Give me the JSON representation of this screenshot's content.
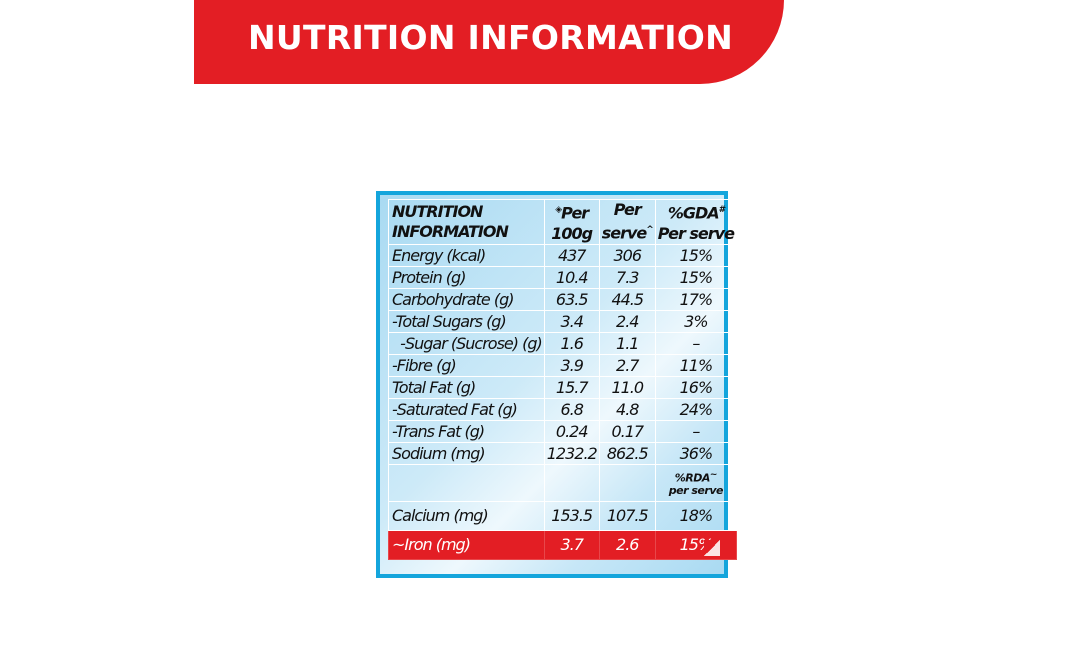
{
  "banner": {
    "title": "NUTRITION INFORMATION"
  },
  "table": {
    "header": {
      "label_line1": "NUTRITION",
      "label_line2": "INFORMATION",
      "per100_sup": "◈",
      "per100_line1": "Per",
      "per100_line2": "100g",
      "perserve_line1": "Per",
      "perserve_line2": "serve",
      "perserve_sup": "^",
      "gda_line1": "%GDA",
      "gda_sup": "#",
      "gda_line2": "Per serve"
    },
    "rows": [
      {
        "label": "Energy (kcal)",
        "per100": "437",
        "perserve": "306",
        "gda": "15%"
      },
      {
        "label": "Protein (g)",
        "per100": "10.4",
        "perserve": "7.3",
        "gda": "15%"
      },
      {
        "label": "Carbohydrate (g)",
        "per100": "63.5",
        "perserve": "44.5",
        "gda": "17%"
      },
      {
        "label": "-Total Sugars (g)",
        "per100": "3.4",
        "perserve": "2.4",
        "gda": "3%"
      },
      {
        "label": "  -Sugar (Sucrose) (g)",
        "per100": "1.6",
        "perserve": "1.1",
        "gda": "–"
      },
      {
        "label": "-Fibre (g)",
        "per100": "3.9",
        "perserve": "2.7",
        "gda": "11%"
      },
      {
        "label": "Total Fat (g)",
        "per100": "15.7",
        "perserve": "11.0",
        "gda": "16%"
      },
      {
        "label": "-Saturated Fat (g)",
        "per100": "6.8",
        "perserve": "4.8",
        "gda": "24%"
      },
      {
        "label": "-Trans Fat (g)",
        "per100": "0.24",
        "perserve": "0.17",
        "gda": "–"
      },
      {
        "label": "Sodium (mg)",
        "per100": "1232.2",
        "perserve": "862.5",
        "gda": "36%"
      }
    ],
    "rda_header": {
      "line1": "%RDA",
      "sup": "~",
      "line2": "per serve"
    },
    "calcium": {
      "label": "Calcium (mg)",
      "per100": "153.5",
      "perserve": "107.5",
      "rda": "18%"
    },
    "iron": {
      "label": "~Iron (mg)",
      "per100": "3.7",
      "perserve": "2.6",
      "rda": "15%"
    }
  },
  "colors": {
    "brand_red": "#e31e24",
    "panel_border": "#14a5dc",
    "panel_bg": "#a9daf2"
  }
}
